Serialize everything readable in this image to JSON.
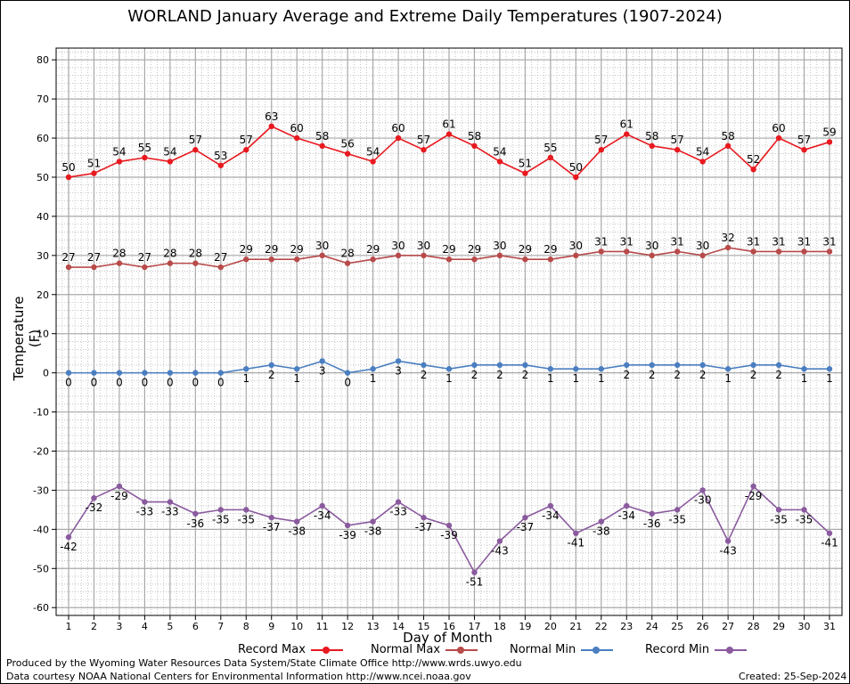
{
  "title": "WORLAND January Average and Extreme Daily Temperatures (1907-2024)",
  "footer": {
    "line1": "Produced by the Wyoming Water Resources Data System/State Climate Office http://www.wrds.uwyo.edu",
    "line2": "Data courtesy NOAA National Centers for Environmental Information http://www.ncei.noaa.gov",
    "created": "Created:  25-Sep-2024"
  },
  "chart_data": {
    "type": "line",
    "title": "WORLAND January Average and Extreme Daily Temperatures (1907-2024)",
    "xlabel": "Day of Month",
    "ylabel": "Temperature (F)",
    "x": [
      1,
      2,
      3,
      4,
      5,
      6,
      7,
      8,
      9,
      10,
      11,
      12,
      13,
      14,
      15,
      16,
      17,
      18,
      19,
      20,
      21,
      22,
      23,
      24,
      25,
      26,
      27,
      28,
      29,
      30,
      31
    ],
    "ylim": [
      -62,
      83
    ],
    "yticks": [
      -60,
      -50,
      -40,
      -30,
      -20,
      -10,
      0,
      10,
      20,
      30,
      40,
      50,
      60,
      70,
      80
    ],
    "grid": true,
    "legend_placement": "bottom",
    "series": [
      {
        "name": "Record Max",
        "color": "#e8191f",
        "values": [
          50,
          51,
          54,
          55,
          54,
          57,
          53,
          57,
          63,
          60,
          58,
          56,
          54,
          60,
          57,
          61,
          58,
          54,
          51,
          55,
          50,
          57,
          61,
          58,
          57,
          54,
          58,
          52,
          60,
          57,
          59
        ]
      },
      {
        "name": "Normal Max",
        "color": "#b84a4a",
        "values": [
          27,
          27,
          28,
          27,
          28,
          28,
          27,
          29,
          29,
          29,
          30,
          28,
          29,
          30,
          30,
          29,
          29,
          30,
          29,
          29,
          30,
          31,
          31,
          30,
          31,
          30,
          32,
          31,
          31,
          31,
          31
        ]
      },
      {
        "name": "Normal Min",
        "color": "#4a7ec0",
        "values": [
          0,
          0,
          0,
          0,
          0,
          0,
          0,
          1,
          2,
          1,
          3,
          0,
          1,
          3,
          2,
          1,
          2,
          2,
          2,
          1,
          1,
          1,
          2,
          2,
          2,
          2,
          1,
          2,
          2,
          1,
          1
        ]
      },
      {
        "name": "Record Min",
        "color": "#8a5a9e",
        "values": [
          -42,
          -32,
          -29,
          -33,
          -33,
          -36,
          -35,
          -35,
          -37,
          -38,
          -34,
          -39,
          -38,
          -33,
          -37,
          -39,
          -51,
          -43,
          -37,
          -34,
          -41,
          -38,
          -34,
          -36,
          -35,
          -30,
          -43,
          -29,
          -35,
          -35,
          -41
        ]
      }
    ]
  }
}
